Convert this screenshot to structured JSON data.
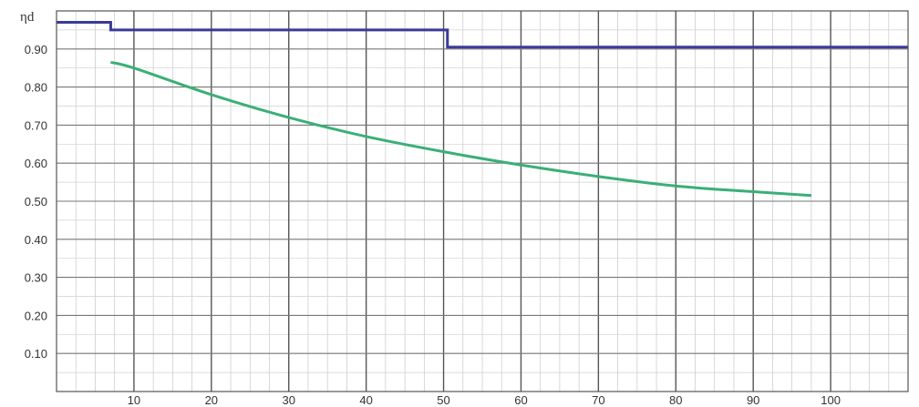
{
  "chart_data": {
    "type": "line",
    "title": "",
    "xlabel": "",
    "ylabel": "ηd",
    "xlim": [
      0,
      110
    ],
    "ylim": [
      0,
      1.0
    ],
    "x_ticks": [
      10,
      20,
      30,
      40,
      50,
      60,
      70,
      80,
      90,
      100
    ],
    "x_tick_labels": [
      "10",
      "20",
      "30",
      "40",
      "50",
      "60",
      "70",
      "80",
      "90",
      "100"
    ],
    "y_ticks": [
      0.1,
      0.2,
      0.3,
      0.4,
      0.5,
      0.6,
      0.7,
      0.8,
      0.9
    ],
    "y_tick_labels": [
      "0.10",
      "0.20",
      "0.30",
      "0.40",
      "0.50",
      "0.60",
      "0.70",
      "0.80",
      "0.90"
    ],
    "grid": true,
    "series": [
      {
        "color": "#3a3a9a",
        "style": "step",
        "x": [
          0,
          7,
          7,
          50.5,
          50.5,
          110
        ],
        "y": [
          0.97,
          0.97,
          0.95,
          0.95,
          0.905,
          0.905
        ]
      },
      {
        "color": "#3aaf78",
        "style": "smooth",
        "x": [
          7,
          10,
          20,
          30,
          40,
          50,
          60,
          70,
          80,
          90,
          97.5
        ],
        "y": [
          0.865,
          0.85,
          0.78,
          0.72,
          0.67,
          0.63,
          0.595,
          0.565,
          0.54,
          0.525,
          0.515
        ]
      }
    ]
  }
}
